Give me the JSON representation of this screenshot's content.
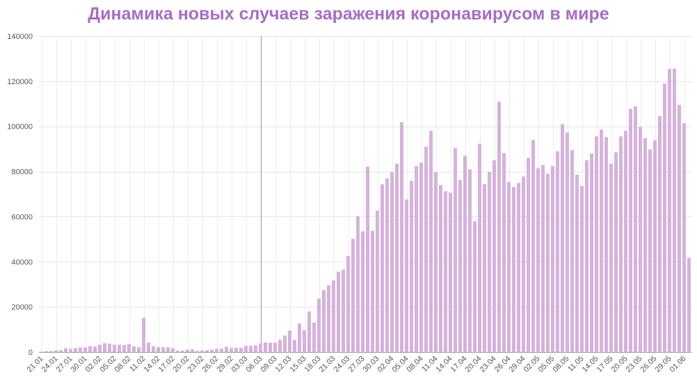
{
  "chart_data": {
    "type": "bar",
    "title": "Динамика новых случаев заражения коронавирусом в мире",
    "xlabel": "",
    "ylabel": "",
    "ylim": [
      0,
      140000
    ],
    "y_ticks": [
      "0",
      "20000",
      "40000",
      "60000",
      "80000",
      "100000",
      "120000",
      "140000"
    ],
    "y_tick_values": [
      0,
      20000,
      40000,
      60000,
      80000,
      100000,
      120000,
      140000
    ],
    "grid": true,
    "bar_color": "#d6b2dc",
    "title_color": "#a86cc4",
    "x_tick_labels": [
      "21.01",
      "24.01",
      "27.01",
      "30.01",
      "02.02",
      "05.02",
      "08.02",
      "11.02",
      "14.02",
      "17.02",
      "20.02",
      "23.02",
      "26.02",
      "29.02",
      "03.03",
      "06.03",
      "09.03",
      "12.03",
      "15.03",
      "18.03",
      "21.03",
      "24.03",
      "27.03",
      "30.03",
      "02.04",
      "05.04",
      "08.04",
      "11.04",
      "14.04",
      "17.04",
      "20.04",
      "23.04",
      "26.04",
      "29.04",
      "02.05",
      "05.05",
      "08.05",
      "11.05",
      "14.05",
      "17.05",
      "20.05",
      "23.05",
      "26.05",
      "29.05",
      "01.06"
    ],
    "first_date": "21.01",
    "marked_date": "06.03",
    "values": [
      100,
      300,
      400,
      700,
      800,
      1700,
      1400,
      1700,
      2000,
      2100,
      2600,
      2400,
      3200,
      3900,
      3700,
      3200,
      3200,
      3100,
      3500,
      2500,
      2100,
      15100,
      4200,
      2600,
      2200,
      2100,
      2100,
      1700,
      600,
      600,
      1000,
      1200,
      500,
      600,
      800,
      1000,
      1400,
      1500,
      2400,
      1800,
      1900,
      1900,
      2800,
      2800,
      3000,
      3800,
      4300,
      4100,
      4100,
      5400,
      7300,
      9500,
      5400,
      12700,
      9700,
      18000,
      13100,
      23700,
      27500,
      29600,
      31700,
      35600,
      36500,
      42600,
      50200,
      60200,
      53500,
      82200,
      53700,
      62600,
      74300,
      77000,
      79800,
      83500,
      101900,
      67600,
      75900,
      82400,
      83900,
      91000,
      98000,
      79700,
      74000,
      71300,
      70600,
      90400,
      76300,
      87000,
      81000,
      58000,
      92300,
      74400,
      79900,
      85000,
      111000,
      88200,
      75400,
      73200,
      74900,
      77800,
      86100,
      94000,
      81500,
      82900,
      79000,
      82500,
      89000,
      101000,
      97300,
      89500,
      78600,
      73600,
      85000,
      88000,
      95600,
      98600,
      95300,
      83500,
      88500,
      95600,
      98000,
      107800,
      108900,
      99800,
      94900,
      89800,
      93900,
      104600,
      119000,
      125500,
      125600,
      109500,
      101500,
      41800
    ]
  }
}
